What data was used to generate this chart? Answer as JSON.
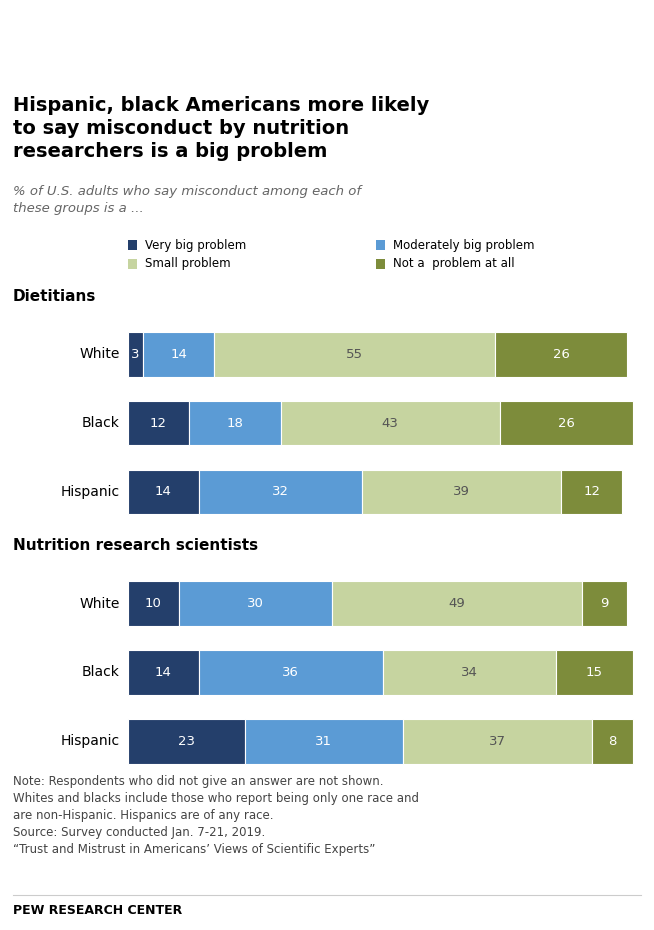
{
  "title": "Hispanic, black Americans more likely\nto say misconduct by nutrition\nresearchers is a big problem",
  "subtitle": "% of U.S. adults who say misconduct among each of\nthese groups is a ...",
  "section1_label": "Dietitians",
  "section2_label": "Nutrition research scientists",
  "categories": [
    "White",
    "Black",
    "Hispanic"
  ],
  "colors": {
    "very_big": "#243f6b",
    "moderately_big": "#5b9bd5",
    "small": "#c6d4a0",
    "not_at_all": "#7d8c3b"
  },
  "legend_labels": [
    "Very big problem",
    "Moderately big problem",
    "Small problem",
    "Not a  problem at all"
  ],
  "dietitians": {
    "White": [
      3,
      14,
      55,
      26
    ],
    "Black": [
      12,
      18,
      43,
      26
    ],
    "Hispanic": [
      14,
      32,
      39,
      12
    ]
  },
  "nutrition_scientists": {
    "White": [
      10,
      30,
      49,
      9
    ],
    "Black": [
      14,
      36,
      34,
      15
    ],
    "Hispanic": [
      23,
      31,
      37,
      8
    ]
  },
  "note_text": "Note: Respondents who did not give an answer are not shown.\nWhites and blacks include those who report being only one race and\nare non-Hispanic. Hispanics are of any race.\nSource: Survey conducted Jan. 7-21, 2019.\n“Trust and Mistrust in Americans’ Views of Scientific Experts”",
  "footer": "PEW RESEARCH CENTER",
  "background_color": "#ffffff"
}
